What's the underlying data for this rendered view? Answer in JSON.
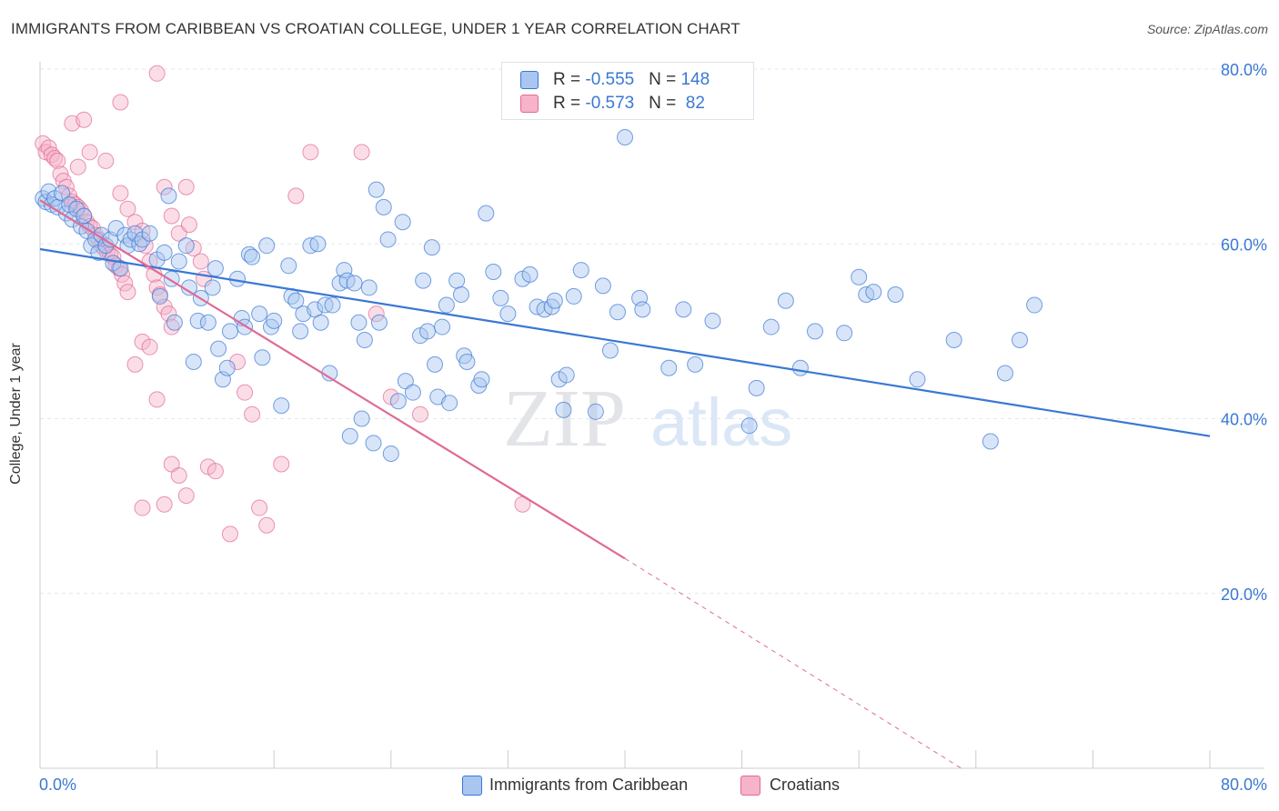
{
  "header": {
    "title": "IMMIGRANTS FROM CARIBBEAN VS CROATIAN COLLEGE, UNDER 1 YEAR CORRELATION CHART",
    "source": "Source: ZipAtlas.com"
  },
  "legend": {
    "rows": [
      {
        "r_label": "R = ",
        "r_value": "-0.555",
        "n_label": "N = ",
        "n_value": "148"
      },
      {
        "r_label": "R = ",
        "r_value": "-0.573",
        "n_label": "N = ",
        "n_value": " 82"
      }
    ]
  },
  "bottom_legend": {
    "series_a": "Immigrants from Caribbean",
    "series_b": "Croatians"
  },
  "watermark": {
    "zip": "ZIP",
    "atlas": "atlas"
  },
  "chart_data": {
    "type": "scatter",
    "title": "IMMIGRANTS FROM CARIBBEAN VS CROATIAN COLLEGE, UNDER 1 YEAR CORRELATION CHART",
    "xlabel": "",
    "ylabel": "College, Under 1 year",
    "xlim": [
      0,
      0.8
    ],
    "ylim": [
      0,
      0.8
    ],
    "x_tick_labels": {
      "left": "0.0%",
      "right": "80.0%"
    },
    "y_tick_labels": [
      {
        "value": 0.2,
        "label": "20.0%"
      },
      {
        "value": 0.4,
        "label": "40.0%"
      },
      {
        "value": 0.6,
        "label": "60.0%"
      },
      {
        "value": 0.8,
        "label": "80.0%"
      }
    ],
    "grid": true,
    "colors": {
      "blue": "#3a78d4",
      "blue_fill": "#a8c6f0",
      "pink": "#e06a95",
      "pink_fill": "#f6b3c9"
    },
    "series": [
      {
        "name": "Immigrants from Caribbean",
        "color": "#3a78d4",
        "R": -0.555,
        "N": 148,
        "trend": {
          "x0": 0.0,
          "y0": 0.594,
          "x1": 0.8,
          "y1": 0.38
        },
        "points": [
          [
            0.002,
            0.652
          ],
          [
            0.004,
            0.648
          ],
          [
            0.006,
            0.66
          ],
          [
            0.008,
            0.645
          ],
          [
            0.01,
            0.652
          ],
          [
            0.012,
            0.642
          ],
          [
            0.015,
            0.658
          ],
          [
            0.018,
            0.635
          ],
          [
            0.02,
            0.645
          ],
          [
            0.022,
            0.628
          ],
          [
            0.025,
            0.64
          ],
          [
            0.028,
            0.62
          ],
          [
            0.03,
            0.632
          ],
          [
            0.032,
            0.615
          ],
          [
            0.035,
            0.598
          ],
          [
            0.038,
            0.605
          ],
          [
            0.04,
            0.59
          ],
          [
            0.042,
            0.61
          ],
          [
            0.045,
            0.598
          ],
          [
            0.048,
            0.605
          ],
          [
            0.05,
            0.578
          ],
          [
            0.052,
            0.618
          ],
          [
            0.055,
            0.572
          ],
          [
            0.058,
            0.61
          ],
          [
            0.06,
            0.598
          ],
          [
            0.062,
            0.605
          ],
          [
            0.065,
            0.612
          ],
          [
            0.068,
            0.6
          ],
          [
            0.07,
            0.605
          ],
          [
            0.075,
            0.612
          ],
          [
            0.08,
            0.582
          ],
          [
            0.082,
            0.54
          ],
          [
            0.085,
            0.59
          ],
          [
            0.088,
            0.655
          ],
          [
            0.09,
            0.56
          ],
          [
            0.092,
            0.51
          ],
          [
            0.095,
            0.58
          ],
          [
            0.1,
            0.598
          ],
          [
            0.102,
            0.55
          ],
          [
            0.105,
            0.465
          ],
          [
            0.108,
            0.512
          ],
          [
            0.11,
            0.538
          ],
          [
            0.115,
            0.51
          ],
          [
            0.118,
            0.55
          ],
          [
            0.12,
            0.572
          ],
          [
            0.122,
            0.48
          ],
          [
            0.125,
            0.445
          ],
          [
            0.128,
            0.458
          ],
          [
            0.13,
            0.5
          ],
          [
            0.135,
            0.56
          ],
          [
            0.138,
            0.515
          ],
          [
            0.14,
            0.505
          ],
          [
            0.143,
            0.588
          ],
          [
            0.145,
            0.585
          ],
          [
            0.15,
            0.52
          ],
          [
            0.152,
            0.47
          ],
          [
            0.155,
            0.598
          ],
          [
            0.158,
            0.505
          ],
          [
            0.16,
            0.512
          ],
          [
            0.165,
            0.415
          ],
          [
            0.17,
            0.575
          ],
          [
            0.172,
            0.54
          ],
          [
            0.175,
            0.535
          ],
          [
            0.178,
            0.5
          ],
          [
            0.18,
            0.52
          ],
          [
            0.185,
            0.598
          ],
          [
            0.188,
            0.525
          ],
          [
            0.19,
            0.6
          ],
          [
            0.192,
            0.51
          ],
          [
            0.195,
            0.53
          ],
          [
            0.198,
            0.452
          ],
          [
            0.2,
            0.53
          ],
          [
            0.205,
            0.555
          ],
          [
            0.208,
            0.57
          ],
          [
            0.21,
            0.558
          ],
          [
            0.212,
            0.38
          ],
          [
            0.215,
            0.555
          ],
          [
            0.218,
            0.51
          ],
          [
            0.22,
            0.4
          ],
          [
            0.222,
            0.49
          ],
          [
            0.225,
            0.55
          ],
          [
            0.228,
            0.372
          ],
          [
            0.23,
            0.662
          ],
          [
            0.232,
            0.51
          ],
          [
            0.235,
            0.642
          ],
          [
            0.238,
            0.605
          ],
          [
            0.24,
            0.36
          ],
          [
            0.245,
            0.42
          ],
          [
            0.248,
            0.625
          ],
          [
            0.25,
            0.443
          ],
          [
            0.255,
            0.43
          ],
          [
            0.26,
            0.495
          ],
          [
            0.262,
            0.558
          ],
          [
            0.265,
            0.5
          ],
          [
            0.268,
            0.596
          ],
          [
            0.27,
            0.462
          ],
          [
            0.272,
            0.425
          ],
          [
            0.275,
            0.505
          ],
          [
            0.278,
            0.53
          ],
          [
            0.28,
            0.418
          ],
          [
            0.285,
            0.558
          ],
          [
            0.288,
            0.542
          ],
          [
            0.29,
            0.472
          ],
          [
            0.292,
            0.465
          ],
          [
            0.3,
            0.438
          ],
          [
            0.302,
            0.445
          ],
          [
            0.305,
            0.635
          ],
          [
            0.31,
            0.568
          ],
          [
            0.315,
            0.538
          ],
          [
            0.32,
            0.52
          ],
          [
            0.33,
            0.56
          ],
          [
            0.335,
            0.565
          ],
          [
            0.34,
            0.528
          ],
          [
            0.345,
            0.525
          ],
          [
            0.35,
            0.528
          ],
          [
            0.352,
            0.535
          ],
          [
            0.355,
            0.445
          ],
          [
            0.358,
            0.41
          ],
          [
            0.36,
            0.45
          ],
          [
            0.365,
            0.54
          ],
          [
            0.37,
            0.57
          ],
          [
            0.38,
            0.408
          ],
          [
            0.385,
            0.552
          ],
          [
            0.39,
            0.478
          ],
          [
            0.395,
            0.522
          ],
          [
            0.4,
            0.722
          ],
          [
            0.41,
            0.538
          ],
          [
            0.412,
            0.525
          ],
          [
            0.43,
            0.458
          ],
          [
            0.44,
            0.525
          ],
          [
            0.448,
            0.462
          ],
          [
            0.46,
            0.512
          ],
          [
            0.485,
            0.392
          ],
          [
            0.49,
            0.435
          ],
          [
            0.5,
            0.505
          ],
          [
            0.51,
            0.535
          ],
          [
            0.52,
            0.458
          ],
          [
            0.53,
            0.5
          ],
          [
            0.55,
            0.498
          ],
          [
            0.56,
            0.562
          ],
          [
            0.565,
            0.542
          ],
          [
            0.57,
            0.545
          ],
          [
            0.585,
            0.542
          ],
          [
            0.6,
            0.445
          ],
          [
            0.625,
            0.49
          ],
          [
            0.65,
            0.374
          ],
          [
            0.66,
            0.452
          ],
          [
            0.67,
            0.49
          ],
          [
            0.68,
            0.53
          ]
        ]
      },
      {
        "name": "Croatians",
        "color": "#e06a95",
        "R": -0.573,
        "N": 82,
        "trend": {
          "x0": 0.0,
          "y0": 0.65,
          "x1": 0.4,
          "y1": 0.24
        },
        "trend_dashed_extension": {
          "x0": 0.4,
          "y0": 0.24,
          "x1": 0.63,
          "y1": 0.0
        },
        "points": [
          [
            0.002,
            0.715
          ],
          [
            0.004,
            0.705
          ],
          [
            0.006,
            0.71
          ],
          [
            0.008,
            0.702
          ],
          [
            0.01,
            0.698
          ],
          [
            0.012,
            0.695
          ],
          [
            0.014,
            0.68
          ],
          [
            0.016,
            0.672
          ],
          [
            0.018,
            0.665
          ],
          [
            0.02,
            0.655
          ],
          [
            0.022,
            0.648
          ],
          [
            0.024,
            0.645
          ],
          [
            0.026,
            0.642
          ],
          [
            0.028,
            0.638
          ],
          [
            0.03,
            0.632
          ],
          [
            0.032,
            0.625
          ],
          [
            0.034,
            0.62
          ],
          [
            0.036,
            0.618
          ],
          [
            0.038,
            0.61
          ],
          [
            0.04,
            0.605
          ],
          [
            0.042,
            0.598
          ],
          [
            0.044,
            0.595
          ],
          [
            0.046,
            0.59
          ],
          [
            0.048,
            0.588
          ],
          [
            0.05,
            0.585
          ],
          [
            0.052,
            0.575
          ],
          [
            0.054,
            0.572
          ],
          [
            0.056,
            0.565
          ],
          [
            0.058,
            0.555
          ],
          [
            0.06,
            0.545
          ],
          [
            0.022,
            0.738
          ],
          [
            0.026,
            0.688
          ],
          [
            0.03,
            0.742
          ],
          [
            0.034,
            0.705
          ],
          [
            0.045,
            0.695
          ],
          [
            0.055,
            0.658
          ],
          [
            0.06,
            0.64
          ],
          [
            0.065,
            0.625
          ],
          [
            0.07,
            0.615
          ],
          [
            0.072,
            0.598
          ],
          [
            0.075,
            0.58
          ],
          [
            0.078,
            0.565
          ],
          [
            0.08,
            0.55
          ],
          [
            0.082,
            0.542
          ],
          [
            0.085,
            0.528
          ],
          [
            0.088,
            0.52
          ],
          [
            0.09,
            0.505
          ],
          [
            0.055,
            0.762
          ],
          [
            0.08,
            0.795
          ],
          [
            0.085,
            0.665
          ],
          [
            0.09,
            0.632
          ],
          [
            0.095,
            0.612
          ],
          [
            0.1,
            0.665
          ],
          [
            0.102,
            0.622
          ],
          [
            0.105,
            0.595
          ],
          [
            0.11,
            0.58
          ],
          [
            0.112,
            0.56
          ],
          [
            0.07,
            0.488
          ],
          [
            0.065,
            0.462
          ],
          [
            0.075,
            0.482
          ],
          [
            0.08,
            0.422
          ],
          [
            0.09,
            0.348
          ],
          [
            0.095,
            0.335
          ],
          [
            0.1,
            0.312
          ],
          [
            0.07,
            0.298
          ],
          [
            0.085,
            0.302
          ],
          [
            0.115,
            0.345
          ],
          [
            0.12,
            0.34
          ],
          [
            0.13,
            0.268
          ],
          [
            0.135,
            0.465
          ],
          [
            0.14,
            0.43
          ],
          [
            0.145,
            0.405
          ],
          [
            0.15,
            0.298
          ],
          [
            0.155,
            0.278
          ],
          [
            0.165,
            0.348
          ],
          [
            0.175,
            0.655
          ],
          [
            0.185,
            0.705
          ],
          [
            0.22,
            0.705
          ],
          [
            0.23,
            0.52
          ],
          [
            0.24,
            0.425
          ],
          [
            0.26,
            0.405
          ],
          [
            0.33,
            0.302
          ]
        ]
      }
    ]
  }
}
